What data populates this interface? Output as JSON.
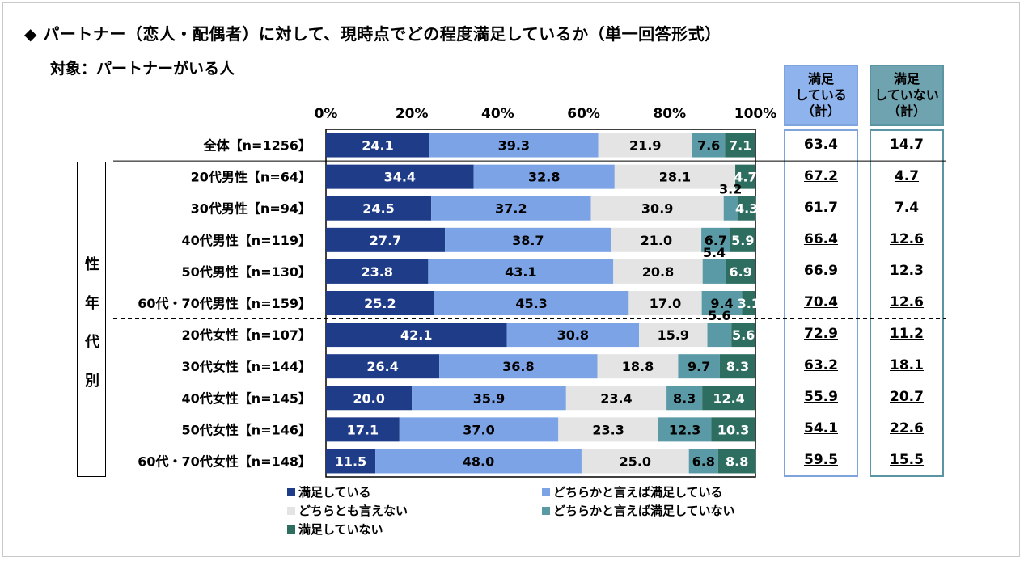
{
  "title": "◆ パートナー（恋人・配偶者）に対して、現時点でどの程度満足しているか（単一回答形式）",
  "subtitle": "対象：パートナーがいる人",
  "group_label_chars": [
    "性",
    "年",
    "代",
    "別"
  ],
  "col_headers": {
    "satisfied": [
      "満足",
      "している",
      "（計）"
    ],
    "unsatisfied": [
      "満足",
      "していない",
      "（計）"
    ]
  },
  "colors": {
    "s1": "#1f3c88",
    "s2": "#7ba3e6",
    "s3": "#e4e4e4",
    "s4": "#5a9aa6",
    "s5": "#2e6e61"
  },
  "chart_data": {
    "type": "bar",
    "orientation": "horizontal-stacked-100",
    "xlim": [
      0,
      100
    ],
    "tick_labels": [
      "0%",
      "20%",
      "40%",
      "60%",
      "80%",
      "100%"
    ],
    "legend_position": "bottom",
    "categories": [
      "全体【n=1256】",
      "20代男性【n=64】",
      "30代男性【n=94】",
      "40代男性【n=119】",
      "50代男性【n=130】",
      "60代・70代男性【n=159】",
      "20代女性【n=107】",
      "30代女性【n=144】",
      "40代女性【n=145】",
      "50代女性【n=146】",
      "60代・70代女性【n=148】"
    ],
    "series": [
      {
        "name": "満足している",
        "values": [
          24.1,
          34.4,
          24.5,
          27.7,
          23.8,
          25.2,
          42.1,
          26.4,
          20.0,
          17.1,
          11.5
        ]
      },
      {
        "name": "どちらかと言えば満足している",
        "values": [
          39.3,
          32.8,
          37.2,
          38.7,
          43.1,
          45.3,
          30.8,
          36.8,
          35.9,
          37.0,
          48.0
        ]
      },
      {
        "name": "どちらとも言えない",
        "values": [
          21.9,
          28.1,
          30.9,
          21.0,
          20.8,
          17.0,
          15.9,
          18.8,
          23.4,
          23.3,
          25.0
        ]
      },
      {
        "name": "どちらかと言えば満足していない",
        "values": [
          7.6,
          0.0,
          3.2,
          6.7,
          5.4,
          9.4,
          5.6,
          9.7,
          8.3,
          12.3,
          6.8
        ]
      },
      {
        "name": "満足していない",
        "values": [
          7.1,
          4.7,
          4.3,
          5.9,
          6.9,
          3.1,
          5.6,
          8.3,
          12.4,
          10.3,
          8.8
        ]
      }
    ],
    "satisfied_total": [
      "63.4",
      "67.2",
      "61.7",
      "66.4",
      "66.9",
      "70.4",
      "72.9",
      "63.2",
      "55.9",
      "54.1",
      "59.5"
    ],
    "unsatisfied_total": [
      "14.7",
      "4.7",
      "7.4",
      "12.6",
      "12.3",
      "12.6",
      "11.2",
      "18.1",
      "20.7",
      "22.6",
      "15.5"
    ]
  }
}
